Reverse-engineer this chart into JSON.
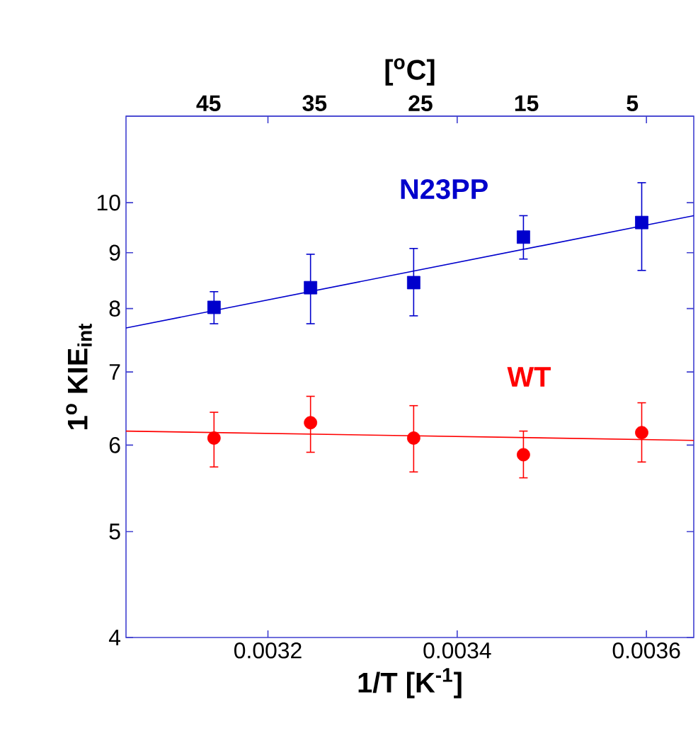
{
  "chart_data": {
    "type": "scatter",
    "xlabel": "1/T [K$^{-1}$]",
    "ylabel": "1$^{o}$ KIE$_{int}$",
    "x2label": "[$^{o}$C]",
    "xlim": [
      0.00305,
      0.00365
    ],
    "xticks": [
      0.0032,
      0.0034,
      0.0036
    ],
    "x2lim": [
      52.8,
      -0.8
    ],
    "x2ticks": [
      45,
      35,
      25,
      15,
      5
    ],
    "ylim": [
      4,
      12
    ],
    "yticks": [
      4,
      5,
      6,
      7,
      8,
      9,
      10
    ],
    "log": "y",
    "grid": false,
    "series": [
      {
        "name": "N23PP",
        "marker": "square",
        "color": "#0000cc",
        "x": [
          0.003143,
          0.003245,
          0.003354,
          0.00347,
          0.003595
        ],
        "values": [
          8.02,
          8.36,
          8.45,
          9.3,
          9.59
        ],
        "errors": [
          [
            7.75,
            8.29
          ],
          [
            7.75,
            8.97
          ],
          [
            7.88,
            9.08
          ],
          [
            8.88,
            9.73
          ],
          [
            8.67,
            10.43
          ]
        ]
      },
      {
        "type": "line",
        "marker": "none",
        "color": "#0000cc",
        "x": [
          0.00305,
          0.00365
        ],
        "values": [
          7.68,
          9.73
        ]
      },
      {
        "name": "WT",
        "marker": "circle",
        "color": "#ff0000",
        "x": [
          0.003143,
          0.003245,
          0.003354,
          0.00347,
          0.003595
        ],
        "values": [
          6.09,
          6.29,
          6.09,
          5.88,
          6.16
        ],
        "errors": [
          [
            5.73,
            6.43
          ],
          [
            5.91,
            6.65
          ],
          [
            5.67,
            6.52
          ],
          [
            5.6,
            6.18
          ],
          [
            5.79,
            6.56
          ]
        ]
      },
      {
        "type": "line",
        "marker": "none",
        "color": "#ff0000",
        "x": [
          0.00305,
          0.00365
        ],
        "values": [
          6.18,
          6.06
        ]
      }
    ]
  }
}
